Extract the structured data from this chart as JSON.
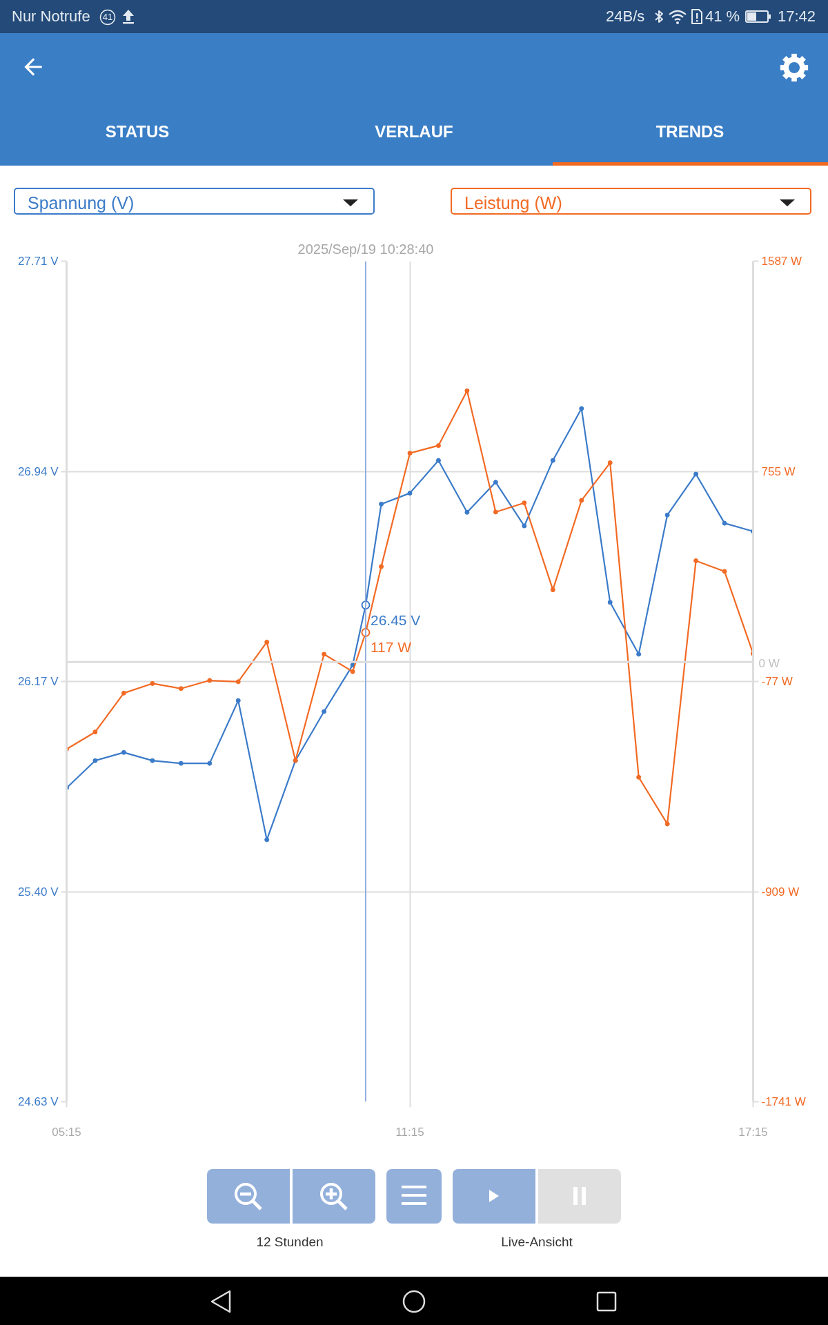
{
  "chart_data": {
    "type": "line",
    "ylabel": "Spannung (V)",
    "y2label": "Leistung (W)",
    "xlim": [
      5.25,
      17.25
    ],
    "xticks": [
      {
        "value": 5.25,
        "label": "05:15"
      },
      {
        "value": 11.25,
        "label": "11:15"
      },
      {
        "value": 17.25,
        "label": "17:15"
      }
    ],
    "ylim": [
      24.63,
      27.71
    ],
    "yticks": [
      {
        "value": 24.63,
        "label": "24.63 V"
      },
      {
        "value": 25.4,
        "label": "25.40 V"
      },
      {
        "value": 26.17,
        "label": "26.17 V"
      },
      {
        "value": 26.94,
        "label": "26.94 V"
      },
      {
        "value": 27.71,
        "label": "27.71 V"
      }
    ],
    "y2lim": [
      -1741,
      1587
    ],
    "y2ticks": [
      {
        "value": -1741,
        "label": "-1741 W"
      },
      {
        "value": -909,
        "label": "-909 W"
      },
      {
        "value": -77,
        "label": "-77 W"
      },
      {
        "value": 755,
        "label": "755 W"
      },
      {
        "value": 1587,
        "label": "1587 W"
      }
    ],
    "series": [
      {
        "color": "#3b7bc9",
        "x": [
          5.25,
          5.75,
          6.25,
          6.75,
          7.25,
          7.75,
          8.25,
          8.75,
          9.25,
          9.75,
          10.25,
          10.47778,
          10.75,
          11.25,
          11.75,
          12.25,
          12.75,
          13.25,
          13.75,
          14.25,
          14.75,
          15.25,
          15.75,
          16.25,
          16.75,
          17.25
        ],
        "values": [
          25.78,
          25.88,
          25.91,
          25.88,
          25.87,
          25.87,
          26.1,
          25.59,
          25.88,
          26.06,
          26.23,
          26.45,
          26.82,
          26.86,
          26.98,
          26.79,
          26.9,
          26.74,
          26.98,
          27.17,
          26.46,
          26.27,
          26.78,
          26.93,
          26.75,
          26.72
        ],
        "value_labels": [
          null,
          null,
          null,
          null,
          null,
          null,
          null,
          null,
          null,
          null,
          null,
          "26.45 V",
          null,
          null,
          null,
          null,
          null,
          null,
          null,
          null,
          null,
          null,
          null,
          null,
          null,
          null
        ]
      },
      {
        "color": "#f26a24",
        "axis": "y2",
        "x": [
          5.25,
          5.75,
          6.25,
          6.75,
          7.25,
          7.75,
          8.25,
          8.75,
          9.25,
          9.75,
          10.25,
          10.47778,
          10.75,
          11.25,
          11.75,
          12.25,
          12.75,
          13.25,
          13.75,
          14.25,
          14.75,
          15.25,
          15.75,
          16.25,
          16.75,
          17.25
        ],
        "values": [
          -345,
          -277,
          -123,
          -85,
          -105,
          -73,
          -78,
          79,
          -390,
          31,
          -38,
          117,
          378,
          827,
          857,
          1074,
          594,
          630,
          286,
          640,
          789,
          -456,
          -641,
          401,
          359,
          33
        ],
        "value_labels": [
          null,
          null,
          null,
          null,
          null,
          null,
          null,
          null,
          null,
          null,
          null,
          "117 W",
          null,
          null,
          null,
          null,
          null,
          null,
          null,
          null,
          null,
          null,
          null,
          null,
          null,
          null
        ]
      }
    ],
    "grid": true,
    "marker": "circle",
    "line_style": "solid",
    "ref_lines": [
      {
        "axis": "x",
        "value": 10.47778,
        "label": "2025/Sep/19 10:28:40",
        "color": "#7e9fd8"
      },
      {
        "axis": "y2",
        "value": 0,
        "label": "0 W",
        "color": "#dddddd"
      }
    ],
    "annotations": [
      "Nur Notrufe",
      "41",
      "24B/s",
      "41 %",
      "17:42",
      "STATUS",
      "VERLAUF",
      "TRENDS",
      "12 Stunden",
      "Live-Ansicht"
    ]
  }
}
